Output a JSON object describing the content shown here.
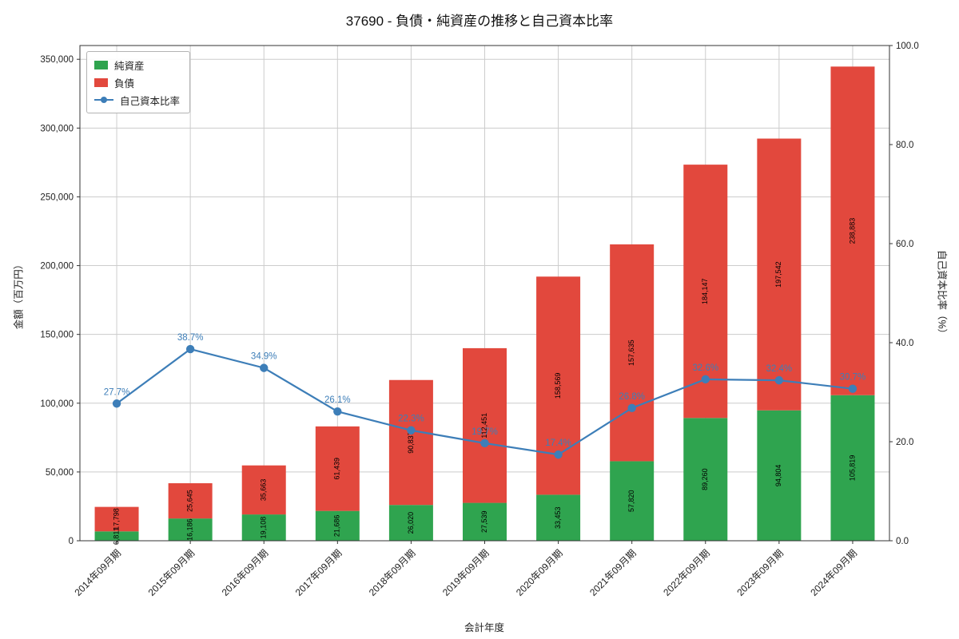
{
  "title": "37690 - 負債・純資産の推移と自己資本比率",
  "legend": {
    "items": [
      {
        "label": "純資産",
        "color": "#2fa44f"
      },
      {
        "label": "負債",
        "color": "#e2483d"
      },
      {
        "label": "自己資本比率",
        "color": "#3d7eb8"
      }
    ]
  },
  "axes": {
    "left": {
      "label": "金額（百万円）",
      "tick_values": [
        0,
        50000,
        100000,
        150000,
        200000,
        250000,
        300000,
        350000
      ],
      "max": 360000
    },
    "right": {
      "label": "自己資本比率（%）",
      "tick_values": [
        0,
        20,
        40,
        60,
        80,
        100
      ],
      "max": 100
    },
    "x": {
      "label": "会計年度"
    }
  },
  "chart_data": {
    "type": "bar",
    "stacked": true,
    "title": "37690 - 負債・純資産の推移と自己資本比率",
    "xlabel": "会計年度",
    "ylabel": "金額（百万円）",
    "ylabel_right": "自己資本比率（%）",
    "ylim_left": [
      0,
      360000
    ],
    "ylim_right": [
      0,
      100
    ],
    "grid": true,
    "legend_position": "upper left",
    "categories": [
      "2014年09月期",
      "2015年09月期",
      "2016年09月期",
      "2017年09月期",
      "2018年09月期",
      "2019年09月期",
      "2020年09月期",
      "2021年09月期",
      "2022年09月期",
      "2023年09月期",
      "2024年09月期"
    ],
    "series": [
      {
        "name": "純資産",
        "type": "bar",
        "axis": "left",
        "color": "#2fa44f",
        "values": [
          6811,
          16186,
          19108,
          21686,
          26020,
          27539,
          33453,
          57820,
          89260,
          94804,
          105819
        ]
      },
      {
        "name": "負債",
        "type": "bar",
        "axis": "left",
        "color": "#e2483d",
        "values": [
          17798,
          25645,
          35663,
          61439,
          90837,
          112451,
          158569,
          157635,
          184147,
          197542,
          238883
        ]
      },
      {
        "name": "自己資本比率",
        "type": "line",
        "axis": "right",
        "color": "#3d7eb8",
        "values": [
          27.7,
          38.7,
          34.9,
          26.1,
          22.3,
          19.7,
          17.4,
          26.8,
          32.6,
          32.4,
          30.7
        ]
      }
    ]
  }
}
